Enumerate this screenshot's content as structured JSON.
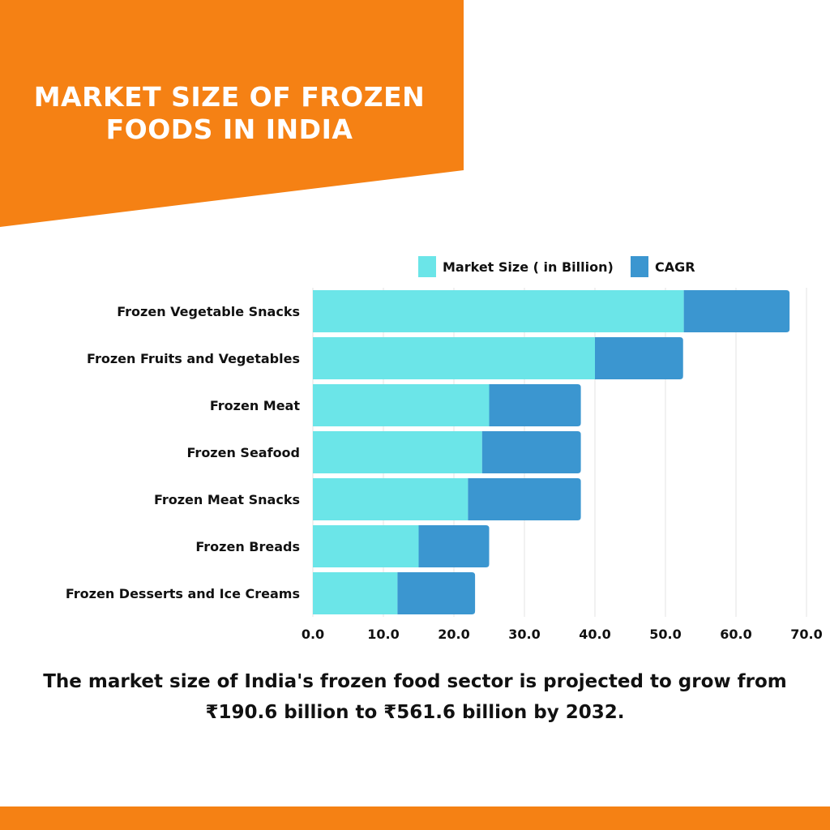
{
  "colors": {
    "banner": "#f58114",
    "market_size": "#6be5e8",
    "cagr": "#3b96d0",
    "grid": "#e3e3e3",
    "text": "#111111"
  },
  "header": {
    "title_line1": "MARKET SIZE OF FROZEN",
    "title_line2": "FOODS IN INDIA"
  },
  "chart_data": {
    "type": "bar",
    "orientation": "horizontal",
    "stacked": true,
    "categories": [
      "Frozen Vegetable Snacks",
      "Frozen Fruits and Vegetables",
      "Frozen Meat",
      "Frozen Seafood",
      "Frozen Meat Snacks",
      "Frozen Breads",
      "Frozen Desserts and Ice Creams"
    ],
    "series": [
      {
        "name": "Market Size ( in Billion)",
        "values": [
          52.6,
          40.0,
          25.0,
          24.0,
          22.0,
          15.0,
          12.0
        ]
      },
      {
        "name": "CAGR",
        "values": [
          15.0,
          12.5,
          13.0,
          14.0,
          16.0,
          10.0,
          11.0
        ]
      }
    ],
    "xlim": [
      0,
      70
    ],
    "xticks": [
      "0.0",
      "10.0",
      "20.0",
      "30.0",
      "40.0",
      "50.0",
      "60.0",
      "70.0"
    ],
    "grid": true,
    "legend": "top-right"
  },
  "caption": {
    "line1": "The market size of India's frozen food sector is projected to grow from",
    "line2": "₹190.6 billion to ₹561.6 billion by 2032."
  }
}
